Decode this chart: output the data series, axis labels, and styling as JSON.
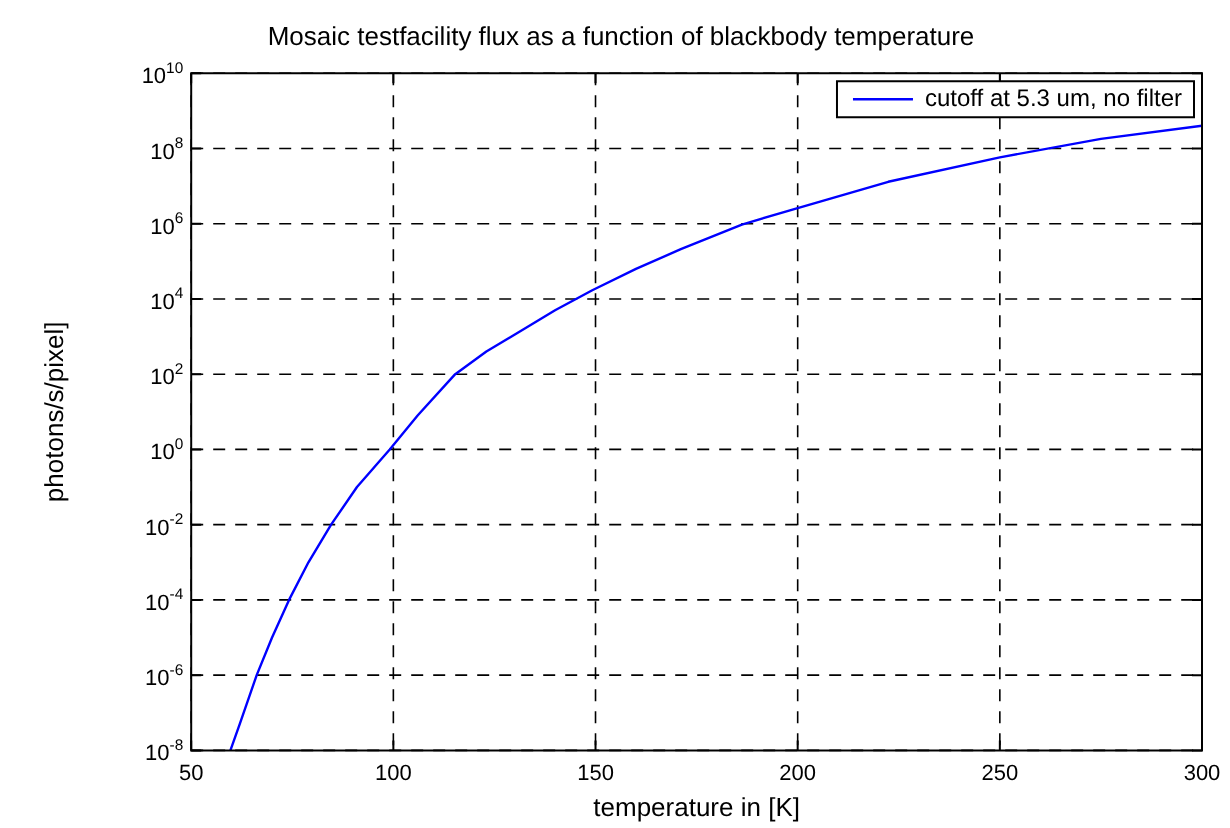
{
  "chart_data": {
    "type": "line",
    "title": "Mosaic testfacility flux as a function of blackbody temperature",
    "xlabel": "temperature in [K]",
    "ylabel": "photons/s/pixel]",
    "x": [
      59.7,
      62,
      66.2,
      70,
      74.2,
      79,
      84.6,
      91,
      99.1,
      106,
      115.3,
      123,
      131.9,
      140,
      149.2,
      160,
      171.1,
      186.2,
      200,
      222.4,
      250,
      275,
      300
    ],
    "series": [
      {
        "name": "cutoff at 5.3 um, no filter",
        "color": "#0000ff",
        "values": [
          1e-08,
          5e-08,
          1e-06,
          1e-05,
          0.0001,
          0.001,
          0.01,
          0.1,
          1,
          8,
          100,
          400,
          1500,
          5000,
          17000,
          63000,
          210000,
          950000,
          2600000,
          13000000,
          58000000,
          180000000,
          400000000
        ]
      }
    ],
    "xlim": [
      50,
      300
    ],
    "xticks": [
      50,
      100,
      150,
      200,
      250,
      300
    ],
    "ylim": [
      1e-08,
      10000000000.0
    ],
    "yticks": [
      {
        "value": 1e-08,
        "label": "10$^{-8}$"
      },
      {
        "value": 1e-06,
        "label": "10$^{-6}$"
      },
      {
        "value": 0.0001,
        "label": "10$^{-4}$"
      },
      {
        "value": 0.01,
        "label": "10$^{-2}$"
      },
      {
        "value": 1,
        "label": "10$^{0}$"
      },
      {
        "value": 100,
        "label": "10$^{2}$"
      },
      {
        "value": 10000,
        "label": "10$^{4}$"
      },
      {
        "value": 1000000,
        "label": "10$^{6}$"
      },
      {
        "value": 100000000,
        "label": "10$^{8}$"
      },
      {
        "value": 10000000000,
        "label": "10$^{10}$"
      }
    ],
    "log": "y",
    "grid": true,
    "legend": "top right",
    "marker": "none",
    "line_style": "solid"
  }
}
